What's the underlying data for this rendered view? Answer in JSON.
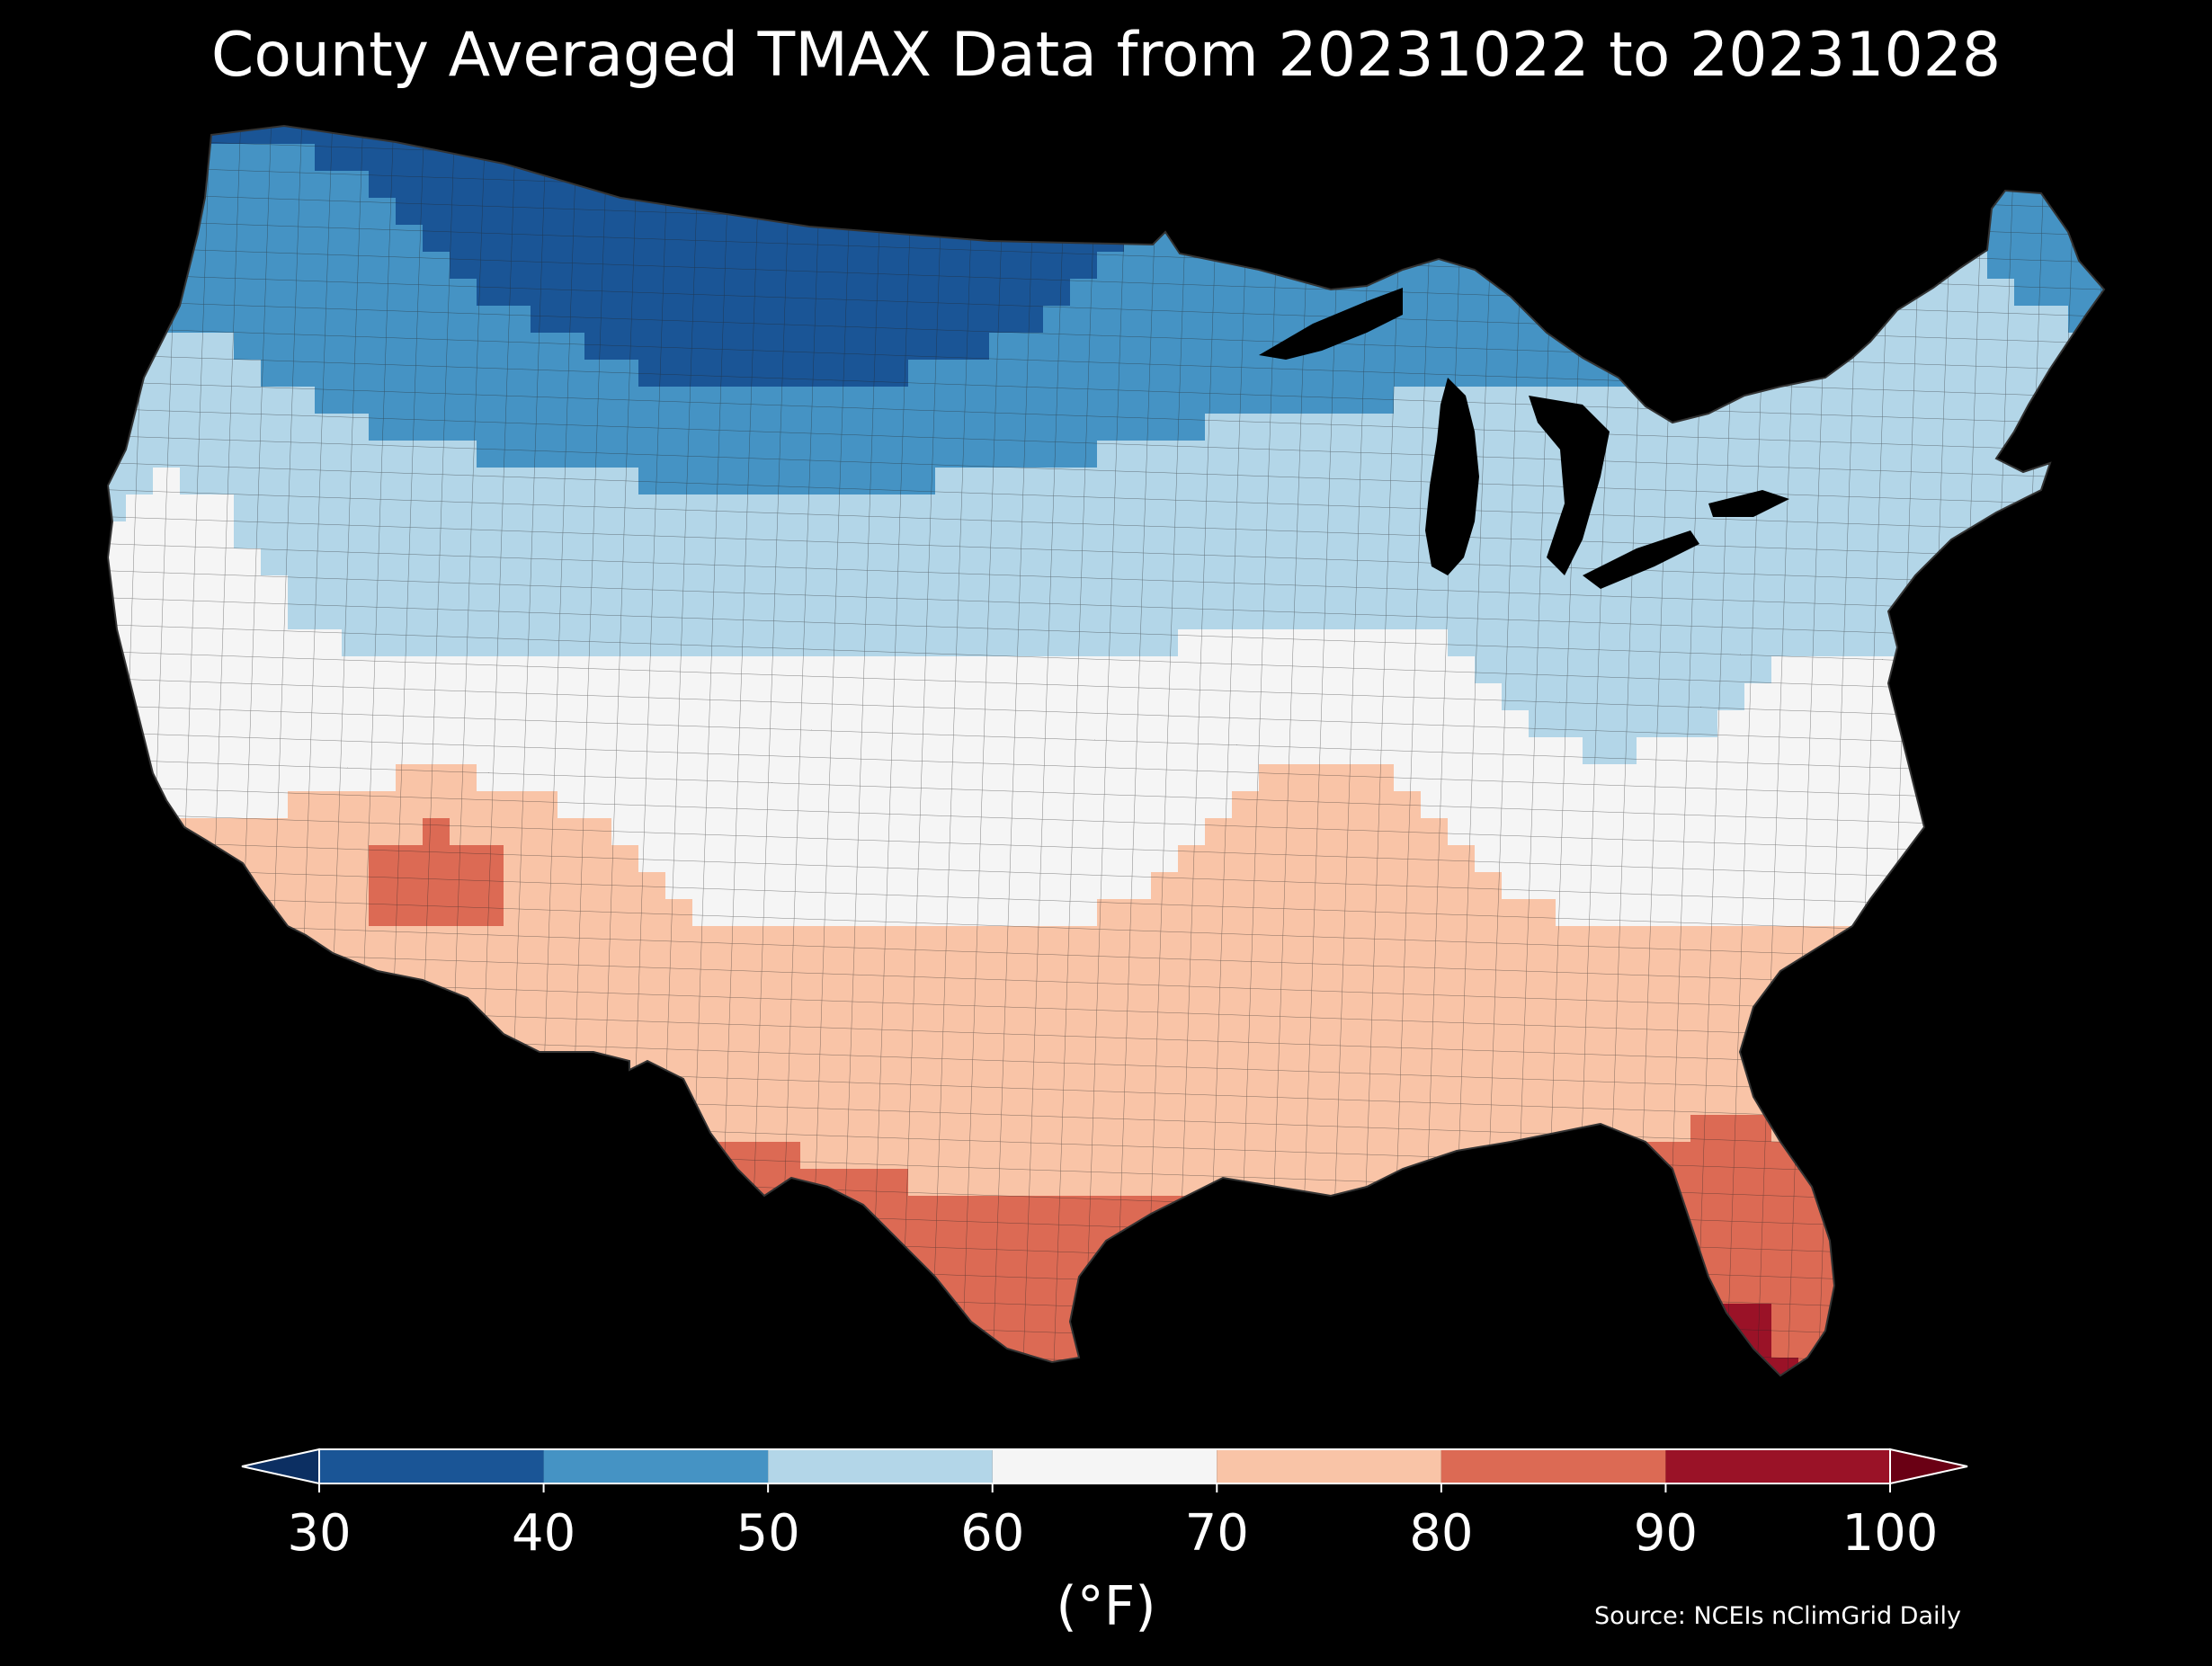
{
  "title": "County Averaged TMAX Data from 20231022 to 20231028",
  "source": "Source: NCEIs nClimGrid Daily",
  "colorbar": {
    "label": "(°F)",
    "ticks": [
      "30",
      "40",
      "50",
      "60",
      "70",
      "80",
      "90",
      "100"
    ],
    "bins": [
      {
        "from": 30,
        "to": 40,
        "color": "#1a5596"
      },
      {
        "from": 40,
        "to": 50,
        "color": "#4593c4"
      },
      {
        "from": 50,
        "to": 60,
        "color": "#b3d6e8"
      },
      {
        "from": 60,
        "to": 70,
        "color": "#f5f5f5"
      },
      {
        "from": 70,
        "to": 80,
        "color": "#f9c4a7"
      },
      {
        "from": 80,
        "to": 90,
        "color": "#dc6a54"
      },
      {
        "from": 90,
        "to": 100,
        "color": "#9a1227"
      }
    ],
    "under_color": "#0c2f62",
    "over_color": "#6a0014",
    "extend": "both"
  },
  "map": {
    "region": "Contiguous United States",
    "units": "county",
    "variable": "TMAX",
    "range": [
      30,
      100
    ]
  }
}
